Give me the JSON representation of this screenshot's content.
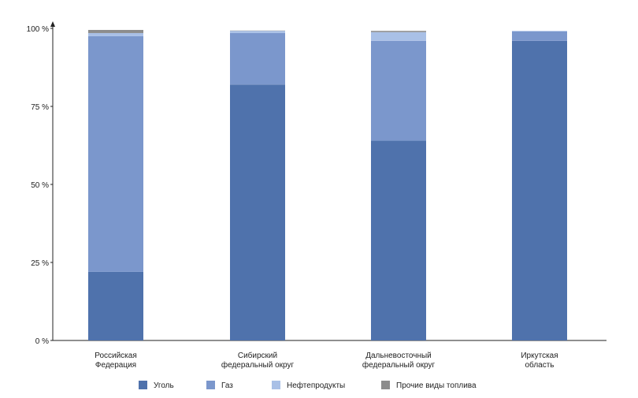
{
  "chart_data": {
    "type": "bar",
    "stacked": true,
    "categories": [
      [
        "Российская",
        "Федерация"
      ],
      [
        "Сибирский",
        "федеральный округ"
      ],
      [
        "Дальневосточный",
        "федеральный округ"
      ],
      [
        "Иркутская",
        "область"
      ]
    ],
    "series": [
      {
        "name": "Уголь",
        "color": "#4f72ac",
        "values": [
          22,
          82,
          64,
          96
        ]
      },
      {
        "name": "Газ",
        "color": "#7b97cc",
        "values": [
          75.5,
          16.5,
          32,
          3
        ]
      },
      {
        "name": "Нефтепродукты",
        "color": "#a9c0e6",
        "values": [
          1,
          0.7,
          2.8,
          0.2
        ]
      },
      {
        "name": "Прочие виды топлива",
        "color": "#8c8c8c",
        "values": [
          1,
          0.1,
          0.4,
          0
        ]
      }
    ],
    "yticks": [
      "0 %",
      "25 %",
      "50 %",
      "75 %",
      "100 %"
    ],
    "ylim": [
      0,
      100
    ],
    "title": "",
    "xlabel": "",
    "ylabel": "",
    "grid": false,
    "legend_position": "bottom"
  }
}
